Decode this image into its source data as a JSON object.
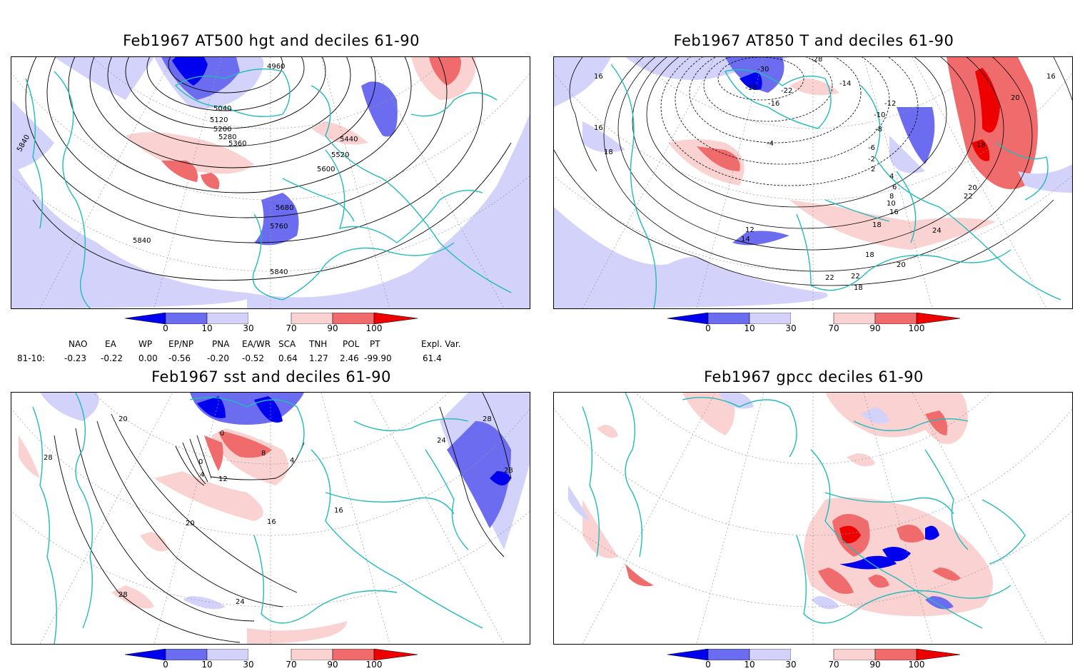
{
  "panels": {
    "p1": {
      "title": "Feb1967 AT500 hgt and deciles 61-90",
      "labels": [
        "4960",
        "5040",
        "5120",
        "5200",
        "5280",
        "5360",
        "5440",
        "5520",
        "5600",
        "5680",
        "5760",
        "5840",
        "5840",
        "5840",
        "5840"
      ]
    },
    "p2": {
      "title": "Feb1967 AT850 T and deciles 61-90",
      "labels": [
        "-28",
        "-30",
        "-18",
        "-22",
        "-14",
        "-16",
        "-12",
        "-10",
        "-8",
        "-6",
        "-4",
        "-2",
        "2",
        "4",
        "6",
        "8",
        "10",
        "12",
        "14",
        "16",
        "18",
        "20",
        "22",
        "24",
        "16",
        "16",
        "18",
        "18",
        "12",
        "14",
        "20",
        "22",
        "18",
        "20",
        "22",
        "18",
        "16"
      ]
    },
    "p3": {
      "title": "Feb1967 sst and deciles 61-90",
      "labels": [
        "20",
        "28",
        "0",
        "0",
        "4",
        "8",
        "12",
        "16",
        "16",
        "20",
        "24",
        "28",
        "24",
        "28",
        "28",
        "4",
        "16"
      ]
    },
    "p4": {
      "title": "Feb1967 gpcc deciles 61-90",
      "labels": []
    }
  },
  "colorbar": {
    "ticks": [
      "0",
      "10",
      "30",
      "70",
      "90",
      "100"
    ],
    "colors": {
      "below0": "#0000ee",
      "d0_10": "#6c6cf0",
      "d10_30": "#d2d2fa",
      "d30_70": "#ffffff",
      "d70_90": "#fad2d2",
      "d90_100": "#f06c6c",
      "above100": "#ee0000"
    }
  },
  "indices": {
    "headers": [
      "NAO",
      "EA",
      "WP",
      "EP/NP",
      "PNA",
      "EA/WR",
      "SCA",
      "TNH",
      "POL",
      "PT",
      "Expl. Var."
    ],
    "row_label": "81-10:",
    "values": [
      "-0.23",
      "-0.22",
      "0.00",
      "-0.56",
      "-0.20",
      "-0.52",
      "0.64",
      "1.27",
      "2.46",
      "-99.90",
      "61.4"
    ]
  },
  "style": {
    "coast": "#22bbbb",
    "contour": "#000000",
    "grid": "#999999"
  }
}
